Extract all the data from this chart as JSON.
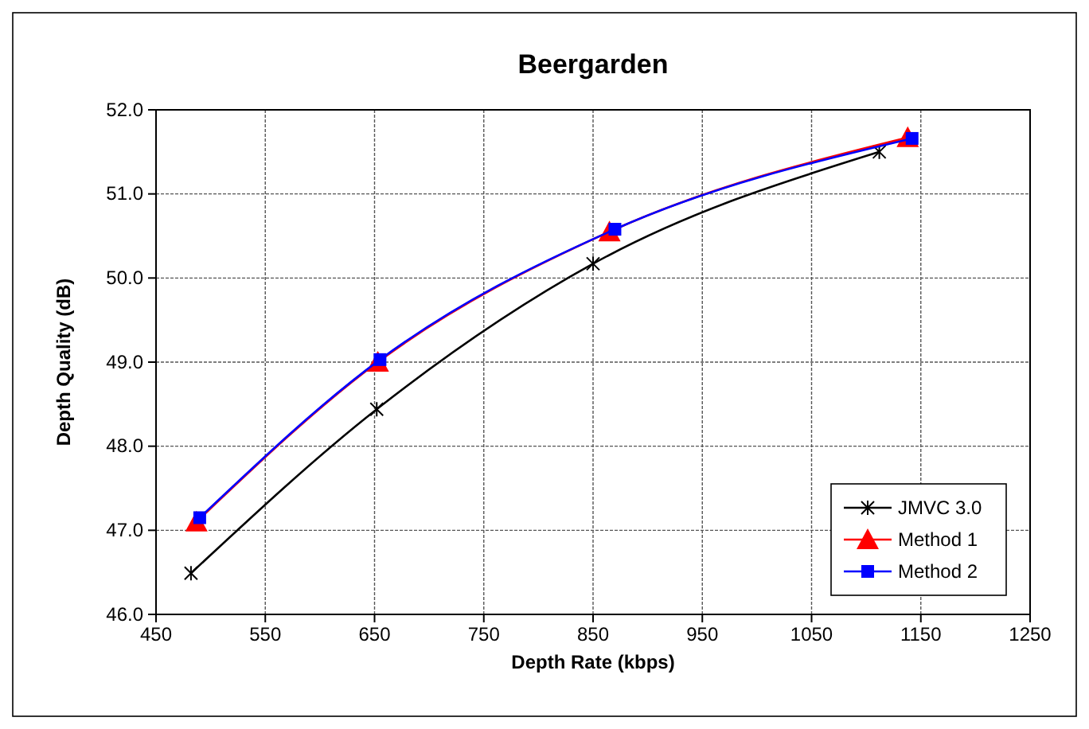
{
  "chart_data": {
    "type": "line",
    "title": "Beergarden",
    "xlabel": "Depth Rate (kbps)",
    "ylabel": "Depth Quality (dB)",
    "xlim": [
      450,
      1250
    ],
    "xticks": [
      {
        "value": 450,
        "label": "450"
      },
      {
        "value": 550,
        "label": "550"
      },
      {
        "value": 650,
        "label": "650"
      },
      {
        "value": 750,
        "label": "750"
      },
      {
        "value": 850,
        "label": "850"
      },
      {
        "value": 950,
        "label": "950"
      },
      {
        "value": 1050,
        "label": "1050"
      },
      {
        "value": 1150,
        "label": "1150"
      },
      {
        "value": 1250,
        "label": "1250"
      }
    ],
    "ylim": [
      46,
      52
    ],
    "yticks": [
      {
        "value": 46,
        "label": "46.0"
      },
      {
        "value": 47,
        "label": "47.0"
      },
      {
        "value": 48,
        "label": "48.0"
      },
      {
        "value": 49,
        "label": "49.0"
      },
      {
        "value": 50,
        "label": "50.0"
      },
      {
        "value": 51,
        "label": "51.0"
      },
      {
        "value": 52,
        "label": "52.0"
      }
    ],
    "grid": true,
    "legend": "bottom right",
    "line_style": "solid",
    "series": [
      {
        "name": "JMVC 3.0",
        "color": "#000000",
        "marker": "cross",
        "x": [
          482,
          652,
          850,
          1112
        ],
        "values": [
          46.49,
          48.44,
          50.17,
          51.5
        ]
      },
      {
        "name": "Method 1",
        "color": "#ff0000",
        "marker": "triangle",
        "x": [
          487,
          653,
          865,
          1138
        ],
        "values": [
          47.1,
          49.0,
          50.55,
          51.67
        ]
      },
      {
        "name": "Method 2",
        "color": "#0000ff",
        "marker": "square",
        "x": [
          490,
          655,
          870,
          1142
        ],
        "values": [
          47.15,
          49.03,
          50.58,
          51.66
        ]
      }
    ]
  }
}
